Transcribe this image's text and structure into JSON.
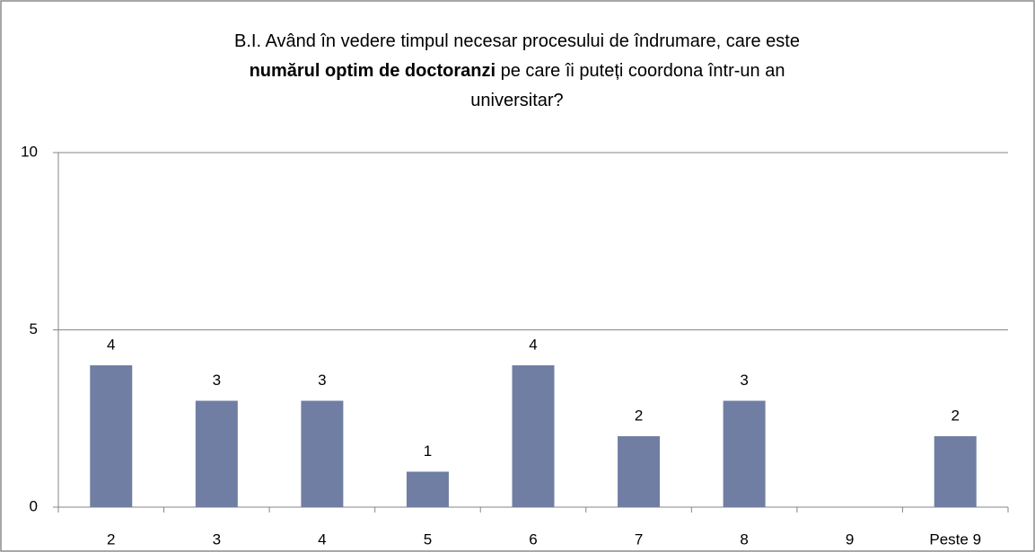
{
  "chart_data": {
    "type": "bar",
    "title": [
      {
        "text": "B.I. Având în vedere timpul necesar procesului de îndrumare, care este ",
        "bold": false
      },
      {
        "text": "numărul optim de doctoranzi",
        "bold": true
      },
      {
        "text": " pe care îi puteți coordona într-un an universitar?",
        "bold": false
      }
    ],
    "categories": [
      "2",
      "3",
      "4",
      "5",
      "6",
      "7",
      "8",
      "9",
      "Peste 9"
    ],
    "values": [
      4,
      3,
      3,
      1,
      4,
      2,
      3,
      0,
      2
    ],
    "color": "#717ea3",
    "ylim": [
      0,
      10
    ],
    "yticks": [
      0,
      5,
      10
    ],
    "grid": true
  }
}
